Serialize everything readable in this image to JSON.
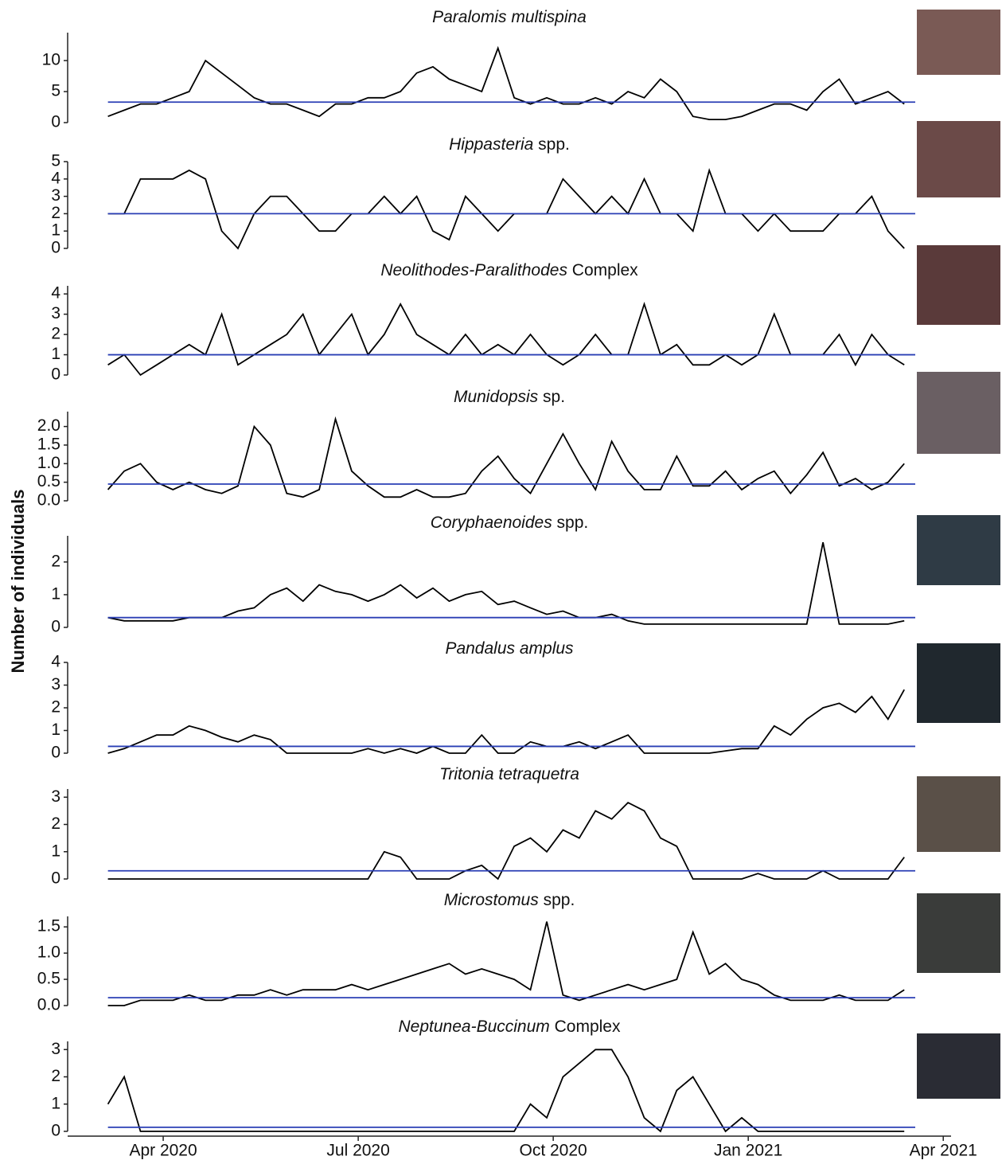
{
  "chart_data": {
    "type": "line",
    "ylabel": "Number of individuals",
    "line_color": "#000000",
    "mean_color": "#2a3fb5",
    "xlim": [
      1.53,
      15.12
    ],
    "xticks": [
      {
        "value": 3,
        "label": "Apr 2020"
      },
      {
        "value": 6,
        "label": "Jul 2020"
      },
      {
        "value": 9,
        "label": "Oct 2020"
      },
      {
        "value": 12,
        "label": "Jan 2021"
      },
      {
        "value": 15,
        "label": "Apr 2021"
      }
    ],
    "x": [
      2.15,
      2.4,
      2.65,
      2.9,
      3.15,
      3.4,
      3.65,
      3.9,
      4.15,
      4.4,
      4.65,
      4.9,
      5.15,
      5.4,
      5.65,
      5.9,
      6.15,
      6.4,
      6.65,
      6.9,
      7.15,
      7.4,
      7.65,
      7.9,
      8.15,
      8.4,
      8.65,
      8.9,
      9.15,
      9.4,
      9.65,
      9.9,
      10.15,
      10.4,
      10.65,
      10.9,
      11.15,
      11.4,
      11.65,
      11.9,
      12.15,
      12.4,
      12.65,
      12.9,
      13.15,
      13.4,
      13.65,
      13.9,
      14.15,
      14.4
    ],
    "panels": [
      {
        "title": [
          "Paralomis multispina"
        ],
        "mean": 3.3,
        "ylim": [
          0,
          14.5
        ],
        "yticks": [
          0,
          5,
          10
        ],
        "values": [
          1,
          2,
          3,
          3,
          4,
          5,
          10,
          8,
          6,
          4,
          3,
          3,
          2,
          1,
          3,
          3,
          4,
          4,
          5,
          8,
          9,
          7,
          6,
          5,
          12,
          4,
          3,
          4,
          3,
          3,
          4,
          3,
          5,
          4,
          7,
          5,
          1,
          0.5,
          0.5,
          1,
          2,
          3,
          3,
          2,
          5,
          7,
          3,
          4,
          5,
          3
        ]
      },
      {
        "title": [
          "Hippasteria",
          "spp."
        ],
        "mean": 2,
        "ylim": [
          0,
          5
        ],
        "yticks": [
          0,
          1,
          2,
          3,
          4,
          5
        ],
        "values": [
          2,
          2,
          4,
          4,
          4,
          4.5,
          4,
          1,
          0,
          2,
          3,
          3,
          2,
          1,
          1,
          2,
          2,
          3,
          2,
          3,
          1,
          0.5,
          3,
          2,
          1,
          2,
          2,
          2,
          4,
          3,
          2,
          3,
          2,
          4,
          2,
          2,
          1,
          4.5,
          2,
          2,
          1,
          2,
          1,
          1,
          1,
          2,
          2,
          3,
          1,
          0
        ]
      },
      {
        "title": [
          "Neolithodes-Paralithodes",
          "Complex"
        ],
        "mean": 1,
        "ylim": [
          0,
          4.4
        ],
        "yticks": [
          0,
          1,
          2,
          3,
          4
        ],
        "values": [
          0.5,
          1,
          0,
          0.5,
          1,
          1.5,
          1,
          3,
          0.5,
          1,
          1.5,
          2,
          3,
          1,
          2,
          3,
          1,
          2,
          3.5,
          2,
          1.5,
          1,
          2,
          1,
          1.5,
          1,
          2,
          1,
          0.5,
          1,
          2,
          1,
          1,
          3.5,
          1,
          1.5,
          0.5,
          0.5,
          1,
          0.5,
          1,
          3,
          1,
          1,
          1,
          2,
          0.5,
          2,
          1,
          0.5
        ]
      },
      {
        "title": [
          "Munidopsis",
          "sp."
        ],
        "mean": 0.45,
        "ylim": [
          0,
          2.4
        ],
        "yticks": [
          {
            "value": 0,
            "label": "0.0"
          },
          {
            "value": 0.5,
            "label": "0.5"
          },
          {
            "value": 1,
            "label": "1.0"
          },
          {
            "value": 1.5,
            "label": "1.5"
          },
          {
            "value": 2,
            "label": "2.0"
          }
        ],
        "values": [
          0.3,
          0.8,
          1,
          0.5,
          0.3,
          0.5,
          0.3,
          0.2,
          0.4,
          2,
          1.5,
          0.2,
          0.1,
          0.3,
          2.2,
          0.8,
          0.4,
          0.1,
          0.1,
          0.3,
          0.1,
          0.1,
          0.2,
          0.8,
          1.2,
          0.6,
          0.2,
          1,
          1.8,
          1,
          0.3,
          1.6,
          0.8,
          0.3,
          0.3,
          1.2,
          0.4,
          0.4,
          0.8,
          0.3,
          0.6,
          0.8,
          0.2,
          0.7,
          1.3,
          0.4,
          0.6,
          0.3,
          0.5,
          1
        ]
      },
      {
        "title": [
          "Coryphaenoides",
          "spp."
        ],
        "mean": 0.3,
        "ylim": [
          0,
          2.8
        ],
        "yticks": [
          0,
          1,
          2
        ],
        "values": [
          0.3,
          0.2,
          0.2,
          0.2,
          0.2,
          0.3,
          0.3,
          0.3,
          0.5,
          0.6,
          1,
          1.2,
          0.8,
          1.3,
          1.1,
          1,
          0.8,
          1,
          1.3,
          0.9,
          1.2,
          0.8,
          1,
          1.1,
          0.7,
          0.8,
          0.6,
          0.4,
          0.5,
          0.3,
          0.3,
          0.4,
          0.2,
          0.1,
          0.1,
          0.1,
          0.1,
          0.1,
          0.1,
          0.1,
          0.1,
          0.1,
          0.1,
          0.1,
          2.6,
          0.1,
          0.1,
          0.1,
          0.1,
          0.2
        ]
      },
      {
        "title": [
          "Pandalus amplus"
        ],
        "mean": 0.3,
        "ylim": [
          0,
          4
        ],
        "yticks": [
          0,
          1,
          2,
          3,
          4
        ],
        "values": [
          0,
          0.2,
          0.5,
          0.8,
          0.8,
          1.2,
          1,
          0.7,
          0.5,
          0.8,
          0.6,
          0,
          0,
          0,
          0,
          0,
          0.2,
          0,
          0.2,
          0,
          0.3,
          0,
          0,
          0.8,
          0,
          0,
          0.5,
          0.3,
          0.3,
          0.5,
          0.2,
          0.5,
          0.8,
          0,
          0,
          0,
          0,
          0,
          0.1,
          0.2,
          0.2,
          1.2,
          0.8,
          1.5,
          2,
          2.2,
          1.8,
          2.5,
          1.5,
          2.8
        ]
      },
      {
        "title": [
          "Tritonia tetraquetra"
        ],
        "mean": 0.3,
        "ylim": [
          0,
          3.3
        ],
        "yticks": [
          0,
          1,
          2,
          3
        ],
        "values": [
          0,
          0,
          0,
          0,
          0,
          0,
          0,
          0,
          0,
          0,
          0,
          0,
          0,
          0,
          0,
          0,
          0,
          1,
          0.8,
          0,
          0,
          0,
          0.3,
          0.5,
          0,
          1.2,
          1.5,
          1,
          1.8,
          1.5,
          2.5,
          2.2,
          2.8,
          2.5,
          1.5,
          1.2,
          0,
          0,
          0,
          0,
          0.2,
          0,
          0,
          0,
          0.3,
          0,
          0,
          0,
          0,
          0.8
        ]
      },
      {
        "title": [
          "Microstomus",
          "spp."
        ],
        "mean": 0.15,
        "ylim": [
          0,
          1.7
        ],
        "yticks": [
          {
            "value": 0,
            "label": "0.0"
          },
          {
            "value": 0.5,
            "label": "0.5"
          },
          {
            "value": 1,
            "label": "1.0"
          },
          {
            "value": 1.5,
            "label": "1.5"
          }
        ],
        "values": [
          0,
          0,
          0.1,
          0.1,
          0.1,
          0.2,
          0.1,
          0.1,
          0.2,
          0.2,
          0.3,
          0.2,
          0.3,
          0.3,
          0.3,
          0.4,
          0.3,
          0.4,
          0.5,
          0.6,
          0.7,
          0.8,
          0.6,
          0.7,
          0.6,
          0.5,
          0.3,
          1.6,
          0.2,
          0.1,
          0.2,
          0.3,
          0.4,
          0.3,
          0.4,
          0.5,
          1.4,
          0.6,
          0.8,
          0.5,
          0.4,
          0.2,
          0.1,
          0.1,
          0.1,
          0.2,
          0.1,
          0.1,
          0.1,
          0.3
        ]
      },
      {
        "title": [
          "Neptunea-Buccinum",
          "Complex"
        ],
        "mean": 0.15,
        "ylim": [
          0,
          3.3
        ],
        "yticks": [
          0,
          1,
          2,
          3
        ],
        "values": [
          1,
          2,
          0,
          0,
          0,
          0,
          0,
          0,
          0,
          0,
          0,
          0,
          0,
          0,
          0,
          0,
          0,
          0,
          0,
          0,
          0,
          0,
          0,
          0,
          0,
          0,
          1,
          0.5,
          2,
          2.5,
          3,
          3,
          2,
          0.5,
          0,
          1.5,
          2,
          1,
          0,
          0.5,
          0,
          0,
          0,
          0,
          0,
          0,
          0,
          0,
          0,
          0
        ]
      }
    ]
  }
}
